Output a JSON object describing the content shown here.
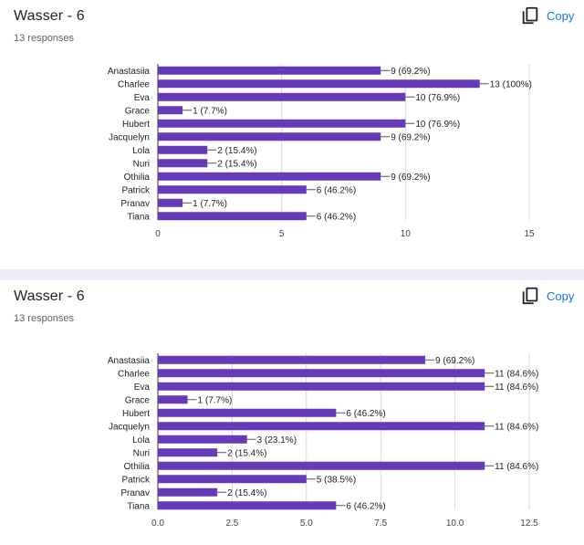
{
  "cards": [
    {
      "title": "Wasser - 6",
      "subtitle": "13 responses",
      "copy_label": "Copy",
      "copy_icon": "copy-icon",
      "chart_data": {
        "type": "bar",
        "orientation": "horizontal",
        "categories": [
          "Anastasiia",
          "Charlee",
          "Eva",
          "Grace",
          "Hubert",
          "Jacquelyn",
          "Lola",
          "Nuri",
          "Othilia",
          "Patrick",
          "Pranav",
          "Tiana"
        ],
        "values": [
          9,
          13,
          10,
          1,
          10,
          9,
          2,
          2,
          9,
          6,
          1,
          6
        ],
        "labels": [
          "9 (69.2%)",
          "13 (100%)",
          "10 (76.9%)",
          "1 (7.7%)",
          "10 (76.9%)",
          "9 (69.2%)",
          "2 (15.4%)",
          "2 (15.4%)",
          "9 (69.2%)",
          "6 (46.2%)",
          "1 (7.7%)",
          "6 (46.2%)"
        ],
        "ticks": [
          "0",
          "5",
          "10",
          "15"
        ],
        "tick_values": [
          0,
          5,
          10,
          15
        ],
        "xlim": [
          0,
          15
        ],
        "grid": true,
        "bar_color": "#673ab7"
      }
    },
    {
      "title": "Wasser - 6",
      "subtitle": "13 responses",
      "copy_label": "Copy",
      "copy_icon": "copy-icon",
      "chart_data": {
        "type": "bar",
        "orientation": "horizontal",
        "categories": [
          "Anastasiia",
          "Charlee",
          "Eva",
          "Grace",
          "Hubert",
          "Jacquelyn",
          "Lola",
          "Nuri",
          "Othilia",
          "Patrick",
          "Pranav",
          "Tiana"
        ],
        "values": [
          9,
          11,
          11,
          1,
          6,
          11,
          3,
          2,
          11,
          5,
          2,
          6
        ],
        "labels": [
          "9 (69.2%)",
          "11 (84.6%)",
          "11 (84.6%)",
          "1 (7.7%)",
          "6 (46.2%)",
          "11 (84.6%)",
          "3 (23.1%)",
          "2 (15.4%)",
          "11 (84.6%)",
          "5 (38.5%)",
          "2 (15.4%)",
          "6 (46.2%)"
        ],
        "ticks": [
          "0.0",
          "2.5",
          "5.0",
          "7.5",
          "10.0",
          "12.5"
        ],
        "tick_values": [
          0,
          2.5,
          5,
          7.5,
          10,
          12.5
        ],
        "xlim": [
          0,
          12.5
        ],
        "grid": true,
        "bar_color": "#673ab7"
      }
    }
  ]
}
